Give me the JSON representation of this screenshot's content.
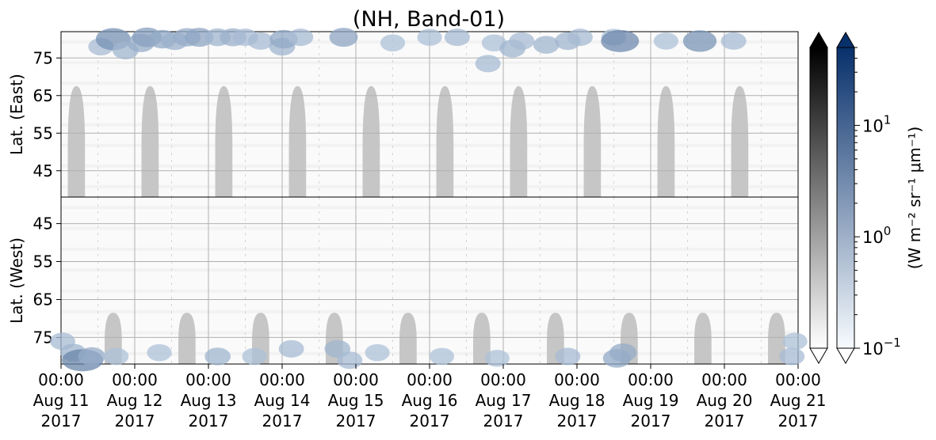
{
  "chart_data": {
    "type": "heatmap",
    "title": "(NH, Band-01)",
    "panels": [
      {
        "name": "east",
        "ylabel": "Lat. (East)",
        "yticks": [
          45,
          55,
          65,
          75
        ],
        "ylim": [
          38,
          82
        ]
      },
      {
        "name": "west",
        "ylabel": "Lat. (West)",
        "yticks": [
          75,
          65,
          55,
          45
        ],
        "ylim": [
          82,
          38
        ]
      }
    ],
    "x_ticks": [
      {
        "time": "00:00",
        "date": "Aug 11",
        "year": "2017"
      },
      {
        "time": "00:00",
        "date": "Aug 12",
        "year": "2017"
      },
      {
        "time": "00:00",
        "date": "Aug 13",
        "year": "2017"
      },
      {
        "time": "00:00",
        "date": "Aug 14",
        "year": "2017"
      },
      {
        "time": "00:00",
        "date": "Aug 15",
        "year": "2017"
      },
      {
        "time": "00:00",
        "date": "Aug 16",
        "year": "2017"
      },
      {
        "time": "00:00",
        "date": "Aug 17",
        "year": "2017"
      },
      {
        "time": "00:00",
        "date": "Aug 18",
        "year": "2017"
      },
      {
        "time": "00:00",
        "date": "Aug 19",
        "year": "2017"
      },
      {
        "time": "00:00",
        "date": "Aug 20",
        "year": "2017"
      },
      {
        "time": "00:00",
        "date": "Aug 21",
        "year": "2017"
      }
    ],
    "xlim": [
      "2017-08-11 00:00",
      "2017-08-21 00:00"
    ],
    "grid": true,
    "colorbar": {
      "label": "(W m⁻² sr⁻¹ μm⁻¹)",
      "scale": "log",
      "range": [
        0.1,
        50
      ],
      "ticks": [
        {
          "value": 0.1,
          "base": "10",
          "exp": "−1"
        },
        {
          "value": 1,
          "base": "10",
          "exp": "0"
        },
        {
          "value": 10,
          "base": "10",
          "exp": "1"
        }
      ],
      "bars": [
        {
          "name": "gray",
          "colors": [
            "#ffffff",
            "#000000"
          ],
          "extend": "both"
        },
        {
          "name": "blue",
          "colors": [
            "#f7fbff",
            "#08306b"
          ],
          "extend": "both"
        }
      ]
    },
    "gray_lobes": {
      "east": [
        {
          "center": "2017-08-11 05:00",
          "half_width_hours": 2.8,
          "low_edge_lat": 67.5
        },
        {
          "center": "2017-08-12 05:00",
          "half_width_hours": 2.8,
          "low_edge_lat": 67.5
        },
        {
          "center": "2017-08-13 05:00",
          "half_width_hours": 2.8,
          "low_edge_lat": 67.5
        },
        {
          "center": "2017-08-14 05:00",
          "half_width_hours": 2.8,
          "low_edge_lat": 67.5
        },
        {
          "center": "2017-08-15 05:00",
          "half_width_hours": 2.8,
          "low_edge_lat": 67.5
        },
        {
          "center": "2017-08-16 05:00",
          "half_width_hours": 2.8,
          "low_edge_lat": 67.5
        },
        {
          "center": "2017-08-17 05:00",
          "half_width_hours": 2.8,
          "low_edge_lat": 67.5
        },
        {
          "center": "2017-08-18 05:00",
          "half_width_hours": 2.8,
          "low_edge_lat": 67.5
        },
        {
          "center": "2017-08-19 05:00",
          "half_width_hours": 2.8,
          "low_edge_lat": 67.5
        },
        {
          "center": "2017-08-20 05:00",
          "half_width_hours": 2.8,
          "low_edge_lat": 67.5
        }
      ],
      "west": [
        {
          "center": "2017-08-11 17:00",
          "half_width_hours": 2.8,
          "low_edge_lat": 68.5
        },
        {
          "center": "2017-08-12 17:00",
          "half_width_hours": 2.8,
          "low_edge_lat": 68.5
        },
        {
          "center": "2017-08-13 17:00",
          "half_width_hours": 2.8,
          "low_edge_lat": 68.5
        },
        {
          "center": "2017-08-14 17:00",
          "half_width_hours": 2.8,
          "low_edge_lat": 68.5
        },
        {
          "center": "2017-08-15 17:00",
          "half_width_hours": 2.8,
          "low_edge_lat": 68.5
        },
        {
          "center": "2017-08-16 17:00",
          "half_width_hours": 2.8,
          "low_edge_lat": 68.5
        },
        {
          "center": "2017-08-17 17:00",
          "half_width_hours": 2.8,
          "low_edge_lat": 68.5
        },
        {
          "center": "2017-08-18 17:00",
          "half_width_hours": 2.8,
          "low_edge_lat": 68.5
        },
        {
          "center": "2017-08-19 17:00",
          "half_width_hours": 2.8,
          "low_edge_lat": 68.5
        },
        {
          "center": "2017-08-20 17:00",
          "half_width_hours": 2.8,
          "low_edge_lat": 68.5
        }
      ]
    },
    "blue_patches": [
      {
        "panel": "east",
        "time": "2017-08-11 13:00",
        "lat": 78,
        "value": 0.5
      },
      {
        "panel": "east",
        "time": "2017-08-11 17:00",
        "lat": 80,
        "value": 2.0
      },
      {
        "panel": "east",
        "time": "2017-08-11 21:00",
        "lat": 77,
        "value": 0.6
      },
      {
        "panel": "east",
        "time": "2017-08-12 02:00",
        "lat": 79,
        "value": 0.8
      },
      {
        "panel": "east",
        "time": "2017-08-12 04:00",
        "lat": 80.5,
        "value": 1.2
      },
      {
        "panel": "east",
        "time": "2017-08-12 09:00",
        "lat": 80,
        "value": 0.9
      },
      {
        "panel": "east",
        "time": "2017-08-12 13:00",
        "lat": 79.5,
        "value": 0.7
      },
      {
        "panel": "east",
        "time": "2017-08-12 17:00",
        "lat": 80.5,
        "value": 0.8
      },
      {
        "panel": "east",
        "time": "2017-08-12 21:00",
        "lat": 80.5,
        "value": 1.0
      },
      {
        "panel": "east",
        "time": "2017-08-13 03:00",
        "lat": 80.5,
        "value": 0.6
      },
      {
        "panel": "east",
        "time": "2017-08-13 08:00",
        "lat": 80.5,
        "value": 0.7
      },
      {
        "panel": "east",
        "time": "2017-08-13 12:00",
        "lat": 80.5,
        "value": 0.5
      },
      {
        "panel": "east",
        "time": "2017-08-13 17:00",
        "lat": 79.5,
        "value": 0.5
      },
      {
        "panel": "east",
        "time": "2017-08-14 00:00",
        "lat": 78,
        "value": 0.6
      },
      {
        "panel": "east",
        "time": "2017-08-14 00:30",
        "lat": 80,
        "value": 0.9
      },
      {
        "panel": "east",
        "time": "2017-08-14 06:00",
        "lat": 80.5,
        "value": 0.5
      },
      {
        "panel": "east",
        "time": "2017-08-14 20:00",
        "lat": 80.5,
        "value": 1.0
      },
      {
        "panel": "east",
        "time": "2017-08-15 12:00",
        "lat": 79,
        "value": 0.4
      },
      {
        "panel": "east",
        "time": "2017-08-16 00:00",
        "lat": 80.5,
        "value": 0.4
      },
      {
        "panel": "east",
        "time": "2017-08-16 09:00",
        "lat": 80.5,
        "value": 0.5
      },
      {
        "panel": "east",
        "time": "2017-08-16 19:00",
        "lat": 73.5,
        "value": 0.5
      },
      {
        "panel": "east",
        "time": "2017-08-16 21:00",
        "lat": 79,
        "value": 0.4
      },
      {
        "panel": "east",
        "time": "2017-08-17 03:00",
        "lat": 77.5,
        "value": 0.6
      },
      {
        "panel": "east",
        "time": "2017-08-17 06:00",
        "lat": 79.5,
        "value": 0.5
      },
      {
        "panel": "east",
        "time": "2017-08-17 14:00",
        "lat": 78.5,
        "value": 0.6
      },
      {
        "panel": "east",
        "time": "2017-08-17 21:00",
        "lat": 79.5,
        "value": 0.6
      },
      {
        "panel": "east",
        "time": "2017-08-18 01:00",
        "lat": 80.5,
        "value": 0.5
      },
      {
        "panel": "east",
        "time": "2017-08-18 12:00",
        "lat": 80.5,
        "value": 0.4
      },
      {
        "panel": "east",
        "time": "2017-08-18 14:00",
        "lat": 79.5,
        "value": 2.5
      },
      {
        "panel": "east",
        "time": "2017-08-19 05:00",
        "lat": 79.5,
        "value": 0.4
      },
      {
        "panel": "east",
        "time": "2017-08-19 16:00",
        "lat": 79.5,
        "value": 1.8
      },
      {
        "panel": "east",
        "time": "2017-08-20 03:00",
        "lat": 79.5,
        "value": 0.5
      },
      {
        "panel": "west",
        "time": "2017-08-11 00:30",
        "lat": 76,
        "value": 0.5
      },
      {
        "panel": "west",
        "time": "2017-08-11 04:00",
        "lat": 79,
        "value": 0.6
      },
      {
        "panel": "west",
        "time": "2017-08-11 07:00",
        "lat": 81,
        "value": 3.0
      },
      {
        "panel": "west",
        "time": "2017-08-11 10:00",
        "lat": 80,
        "value": 0.8
      },
      {
        "panel": "west",
        "time": "2017-08-11 18:00",
        "lat": 80,
        "value": 0.4
      },
      {
        "panel": "west",
        "time": "2017-08-12 08:00",
        "lat": 79,
        "value": 0.4
      },
      {
        "panel": "west",
        "time": "2017-08-13 03:00",
        "lat": 80,
        "value": 0.6
      },
      {
        "panel": "west",
        "time": "2017-08-13 15:00",
        "lat": 80,
        "value": 0.4
      },
      {
        "panel": "west",
        "time": "2017-08-14 03:00",
        "lat": 78,
        "value": 0.5
      },
      {
        "panel": "west",
        "time": "2017-08-14 18:00",
        "lat": 78,
        "value": 0.6
      },
      {
        "panel": "west",
        "time": "2017-08-14 22:00",
        "lat": 81,
        "value": 0.5
      },
      {
        "panel": "west",
        "time": "2017-08-15 07:00",
        "lat": 79,
        "value": 0.4
      },
      {
        "panel": "west",
        "time": "2017-08-16 04:00",
        "lat": 80,
        "value": 0.4
      },
      {
        "panel": "west",
        "time": "2017-08-16 22:00",
        "lat": 80.5,
        "value": 0.4
      },
      {
        "panel": "west",
        "time": "2017-08-17 21:00",
        "lat": 80,
        "value": 0.5
      },
      {
        "panel": "west",
        "time": "2017-08-18 13:00",
        "lat": 80.5,
        "value": 0.9
      },
      {
        "panel": "west",
        "time": "2017-08-18 15:00",
        "lat": 79,
        "value": 0.8
      },
      {
        "panel": "west",
        "time": "2017-08-20 22:00",
        "lat": 80,
        "value": 0.5
      },
      {
        "panel": "west",
        "time": "2017-08-20 23:00",
        "lat": 76,
        "value": 0.4
      }
    ]
  }
}
